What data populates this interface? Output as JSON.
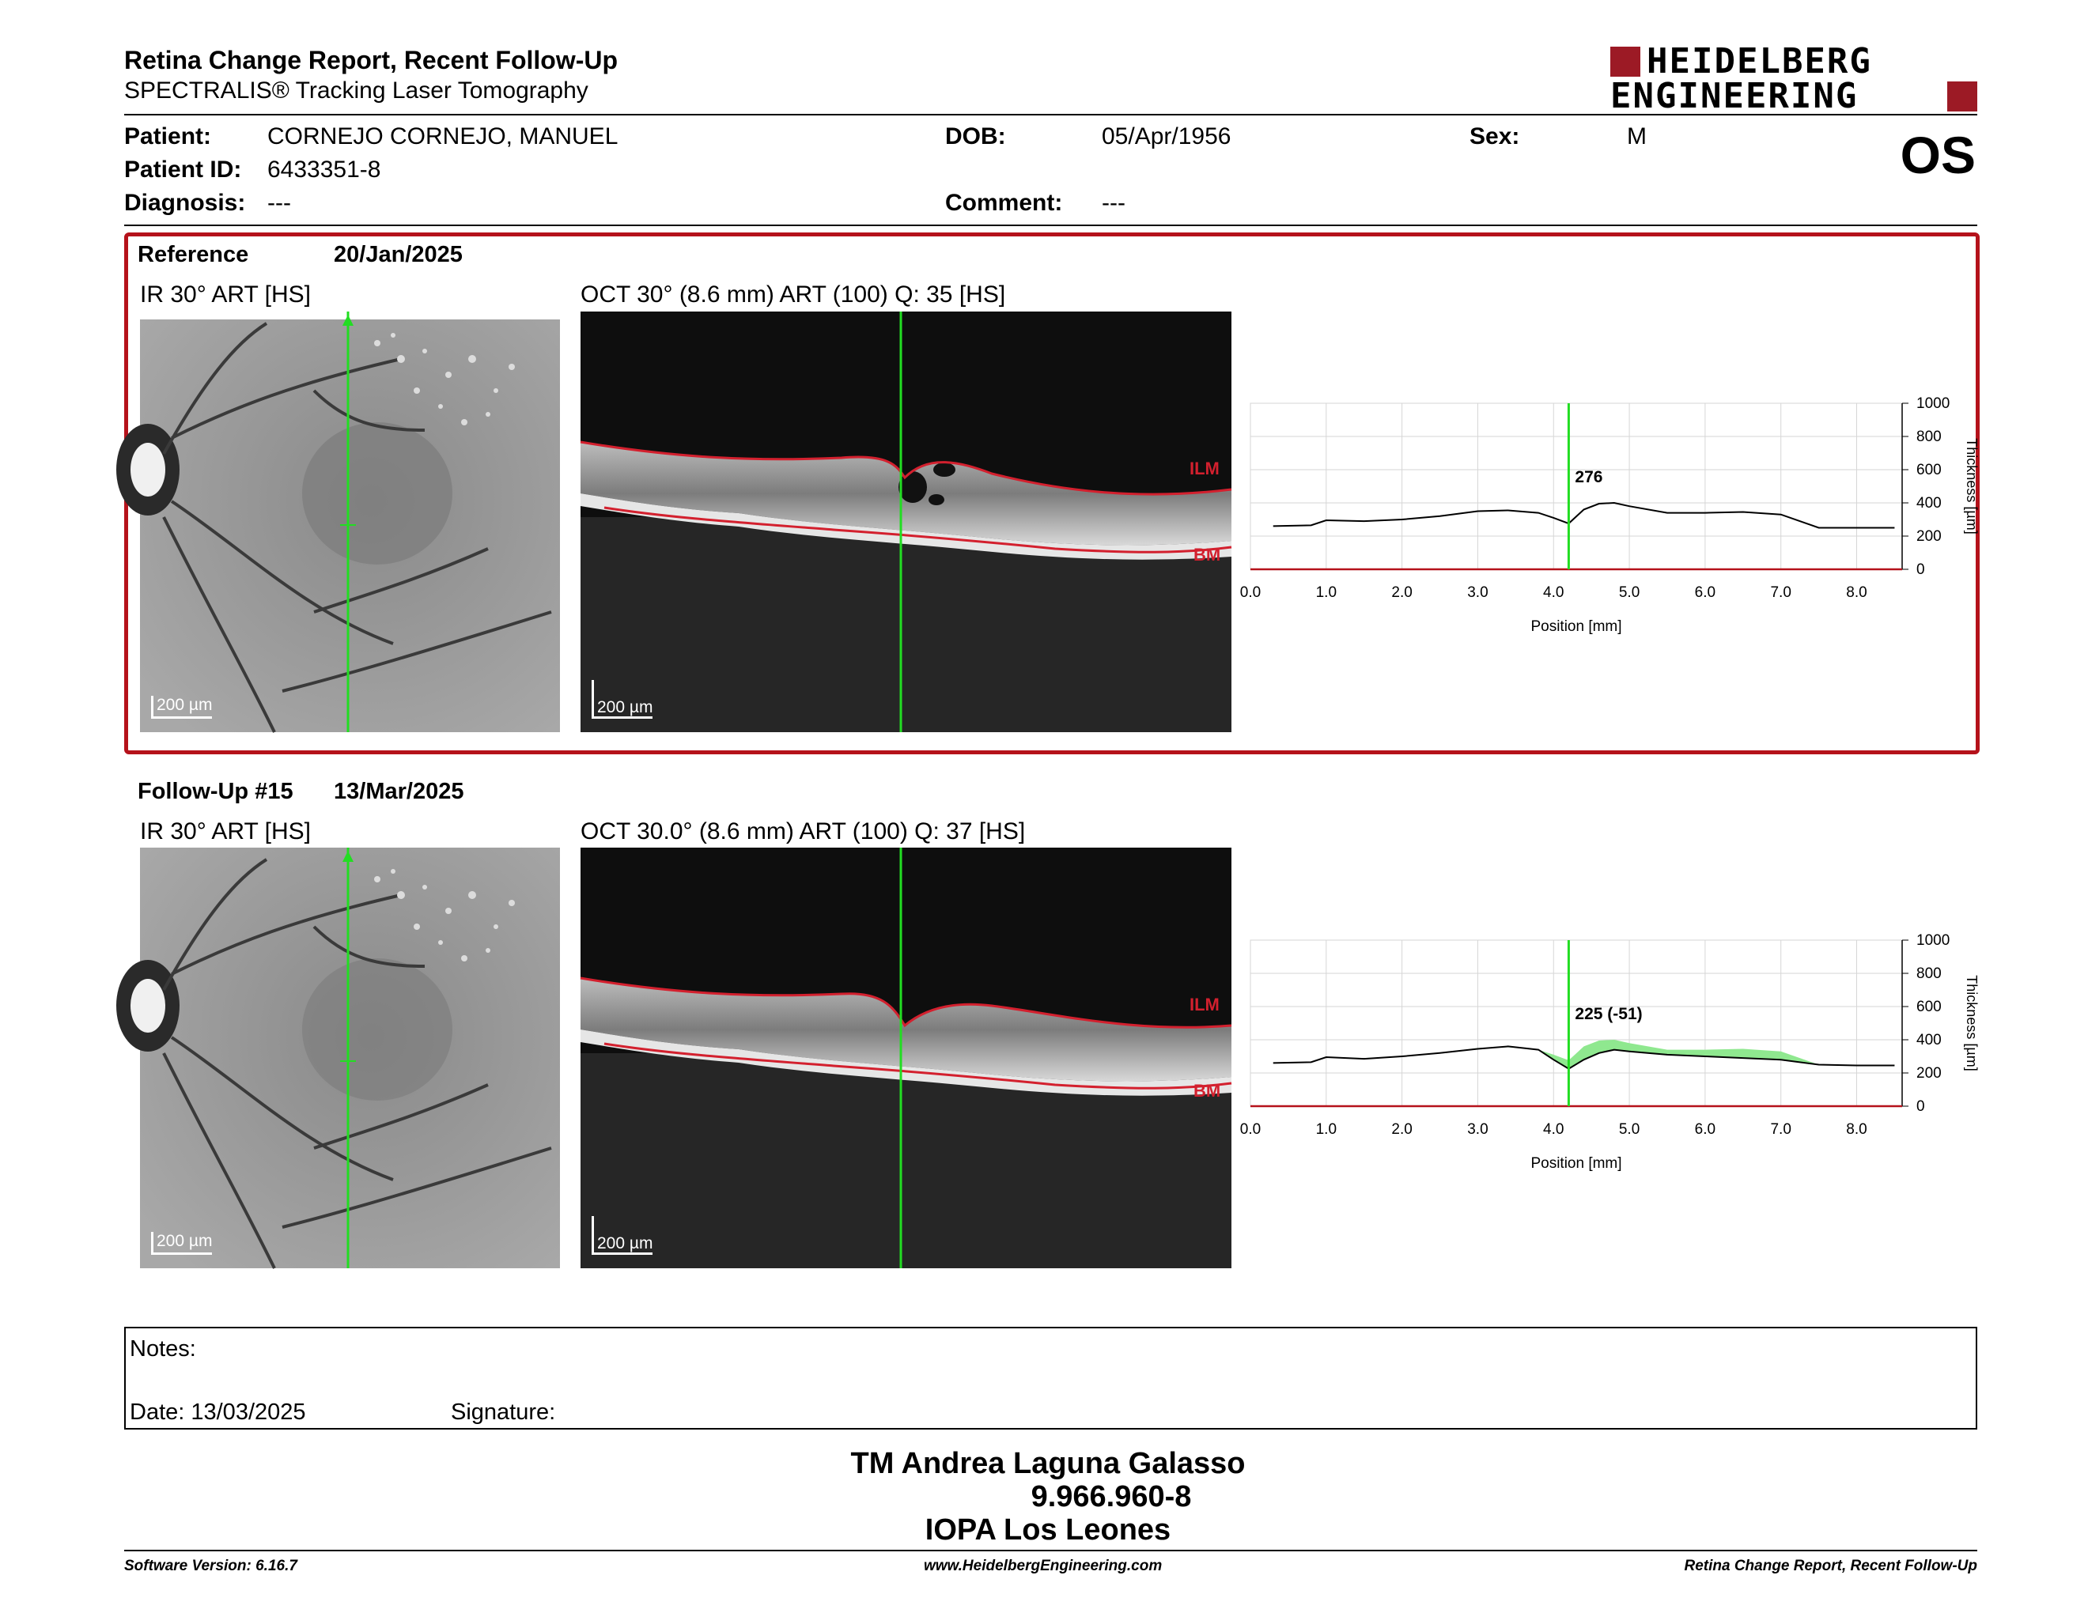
{
  "header": {
    "title": "Retina Change Report, Recent Follow-Up",
    "subtitle": "SPECTRALIS® Tracking Laser Tomography",
    "logo_line1": "HEIDELBERG",
    "logo_line2": "ENGINEERING",
    "eye": "OS"
  },
  "patient": {
    "patient_label": "Patient:",
    "patient_value": "CORNEJO CORNEJO, MANUEL",
    "id_label": "Patient ID:",
    "id_value": "6433351-8",
    "diag_label": "Diagnosis:",
    "diag_value": "---",
    "dob_label": "DOB:",
    "dob_value": "05/Apr/1956",
    "comment_label": "Comment:",
    "comment_value": "---",
    "sex_label": "Sex:",
    "sex_value": "M"
  },
  "reference": {
    "label": "Reference",
    "date": "20/Jan/2025",
    "ir_caption": "IR 30° ART [HS]",
    "oct_caption": "OCT 30° (8.6 mm) ART (100) Q: 35 [HS]",
    "scale": "200 µm",
    "ilm": "ILM",
    "bm": "BM"
  },
  "followup": {
    "label": "Follow-Up #15",
    "date": "13/Mar/2025",
    "ir_caption": "IR 30° ART [HS]",
    "oct_caption": "OCT 30.0° (8.6 mm) ART (100) Q: 37 [HS]",
    "scale": "200 µm",
    "ilm": "ILM",
    "bm": "BM"
  },
  "chart_data": [
    {
      "type": "line",
      "xlabel": "Position [mm]",
      "ylabel": "Thickness [µm]",
      "xlim": [
        0,
        8.6
      ],
      "ylim": [
        0,
        1000
      ],
      "x_ticks": [
        "0.0",
        "1.0",
        "2.0",
        "3.0",
        "4.0",
        "5.0",
        "6.0",
        "7.0",
        "8.0"
      ],
      "y_ticks": [
        "0",
        "200",
        "400",
        "600",
        "800",
        "1000"
      ],
      "marker_x": 4.2,
      "marker_label": "276",
      "series": [
        {
          "x": [
            0.3,
            0.8,
            1.0,
            1.5,
            2.0,
            2.5,
            3.0,
            3.4,
            3.8,
            4.0,
            4.2,
            4.4,
            4.6,
            4.8,
            5.0,
            5.5,
            6.0,
            6.5,
            7.0,
            7.5,
            8.0,
            8.5
          ],
          "values": [
            260,
            265,
            295,
            290,
            300,
            320,
            350,
            355,
            340,
            310,
            276,
            360,
            395,
            400,
            380,
            340,
            340,
            345,
            330,
            250,
            250,
            250
          ]
        }
      ]
    },
    {
      "type": "area",
      "xlabel": "Position [mm]",
      "ylabel": "Thickness [µm]",
      "xlim": [
        0,
        8.6
      ],
      "ylim": [
        0,
        1000
      ],
      "x_ticks": [
        "0.0",
        "1.0",
        "2.0",
        "3.0",
        "4.0",
        "5.0",
        "6.0",
        "7.0",
        "8.0"
      ],
      "y_ticks": [
        "0",
        "200",
        "400",
        "600",
        "800",
        "1000"
      ],
      "marker_x": 4.2,
      "marker_label": "225 (-51)",
      "series": [
        {
          "x": [
            0.3,
            0.8,
            1.0,
            1.5,
            2.0,
            2.5,
            3.0,
            3.4,
            3.8,
            4.0,
            4.2,
            4.4,
            4.6,
            4.8,
            5.0,
            5.5,
            6.0,
            6.5,
            7.0,
            7.5,
            8.0,
            8.5
          ],
          "values": [
            260,
            265,
            295,
            290,
            300,
            320,
            350,
            355,
            340,
            310,
            276,
            360,
            395,
            400,
            380,
            340,
            340,
            345,
            330,
            250,
            250,
            250
          ]
        },
        {
          "x": [
            0.3,
            0.8,
            1.0,
            1.5,
            2.0,
            2.5,
            3.0,
            3.4,
            3.8,
            4.0,
            4.2,
            4.4,
            4.6,
            4.8,
            5.0,
            5.5,
            6.0,
            6.5,
            7.0,
            7.5,
            8.0,
            8.5
          ],
          "values": [
            260,
            265,
            295,
            285,
            300,
            320,
            345,
            360,
            340,
            280,
            225,
            280,
            320,
            340,
            330,
            310,
            300,
            290,
            280,
            250,
            245,
            245
          ]
        }
      ]
    }
  ],
  "notes": {
    "label": "Notes:",
    "date": "Date: 13/03/2025",
    "signature": "Signature:"
  },
  "signer": {
    "name": "TM Andrea Laguna Galasso",
    "id": "9.966.960-8",
    "org": "IOPA Los Leones"
  },
  "footer": {
    "version": "Software Version: 6.16.7",
    "url": "www.HeidelbergEngineering.com",
    "report": "Retina Change Report, Recent Follow-Up"
  },
  "colors": {
    "accent_red": "#b5121b",
    "scan_line": "#22dd22",
    "diff_fill": "#8fe88f"
  }
}
